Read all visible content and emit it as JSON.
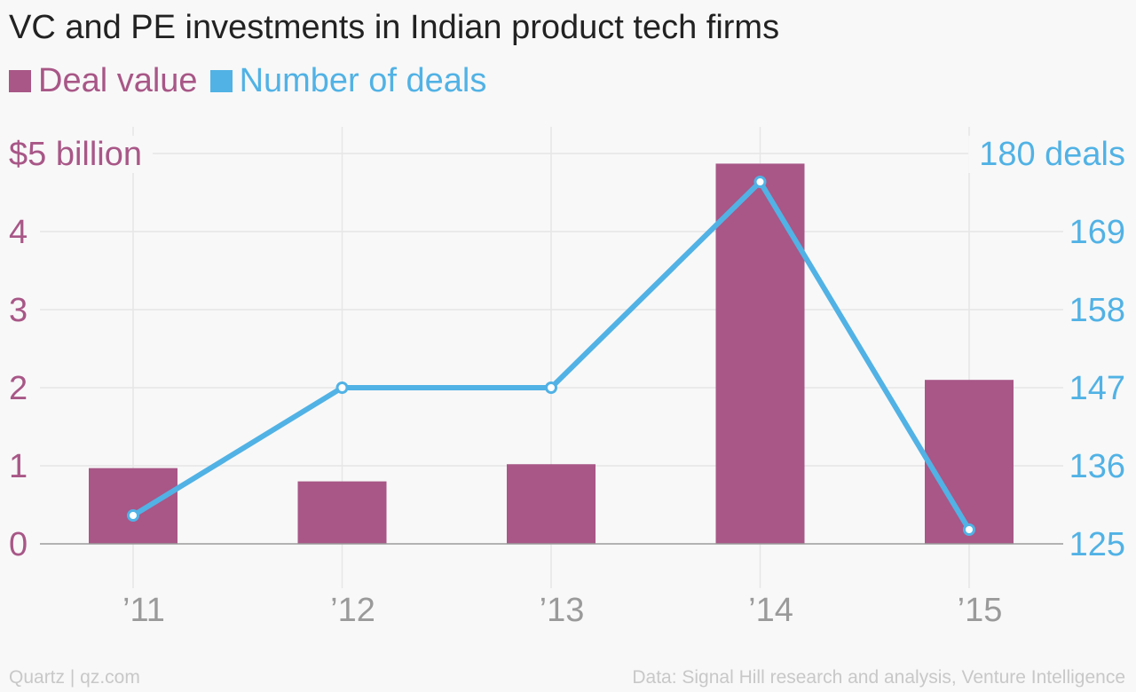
{
  "title": "VC and PE investments in Indian product tech firms",
  "legend": [
    {
      "label": "Deal value",
      "color": "#a85787"
    },
    {
      "label": "Number of deals",
      "color": "#51b2e5"
    }
  ],
  "chart_data": {
    "type": "bar",
    "title": "VC and PE investments in Indian product tech firms",
    "categories": [
      "’11",
      "’12",
      "’13",
      "’14",
      "’15"
    ],
    "series": [
      {
        "name": "Deal value",
        "type": "bar",
        "axis": "left",
        "color": "#a85787",
        "values": [
          0.97,
          0.8,
          1.02,
          4.87,
          2.1
        ]
      },
      {
        "name": "Number of deals",
        "type": "line",
        "axis": "right",
        "color": "#51b2e5",
        "values": [
          129,
          147,
          147,
          176,
          127
        ]
      }
    ],
    "y_left": {
      "ylim": [
        0,
        5
      ],
      "ticks": [
        0,
        1,
        2,
        3,
        4,
        5
      ],
      "tick_labels": [
        "0",
        "1",
        "2",
        "3",
        "4",
        "$5 billion"
      ],
      "color": "#a85787"
    },
    "y_right": {
      "ylim": [
        125,
        180
      ],
      "ticks": [
        125,
        136,
        147,
        158,
        169,
        180
      ],
      "tick_labels": [
        "125",
        "136",
        "147",
        "158",
        "169",
        "180 deals"
      ],
      "color": "#51b2e5"
    },
    "grid": true,
    "legend_position": "top-left"
  },
  "footer": {
    "source_left": "Quartz | qz.com",
    "source_right": "Data: Signal Hill research and analysis, Venture Intelligence"
  }
}
